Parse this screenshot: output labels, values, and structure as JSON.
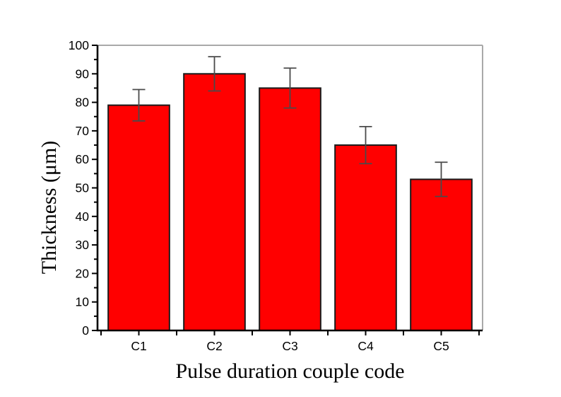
{
  "chart_data": {
    "type": "bar",
    "title": "",
    "xlabel": "Pulse duration couple code",
    "ylabel": "Thickness (μm)",
    "categories": [
      "C1",
      "C2",
      "C3",
      "C4",
      "C5"
    ],
    "values": [
      79,
      90,
      85,
      65,
      53
    ],
    "error_bars": [
      5.5,
      6,
      7,
      6.5,
      6
    ],
    "ylim": [
      0,
      100
    ],
    "ytick_step": 10,
    "yminor_step": 5,
    "ytick_labels": [
      "0",
      "10",
      "20",
      "30",
      "40",
      "50",
      "60",
      "70",
      "80",
      "90",
      "100"
    ],
    "grid": "off",
    "legend": "none",
    "bar_width_ratio": 0.81
  },
  "colors": {
    "background": "#ffffff",
    "bar_fill": "#ff0000",
    "bar_border": "#1a1a1a",
    "error_bar": "#4a4a4a",
    "axis": "#000000",
    "frame": "#a9a9a9",
    "text": "#000000"
  }
}
